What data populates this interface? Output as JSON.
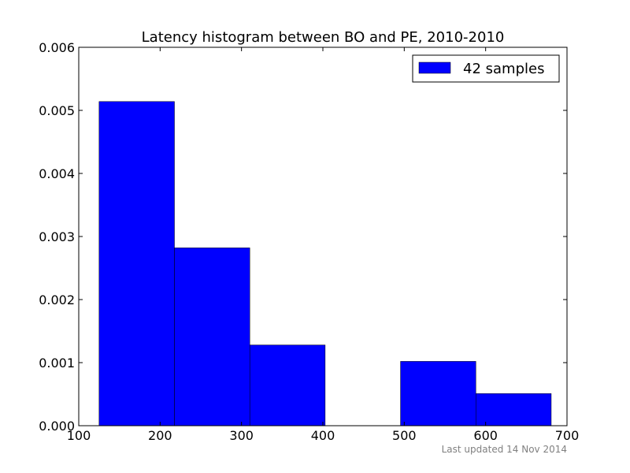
{
  "chart_data": {
    "type": "bar",
    "title": "Latency histogram between BO and PE, 2010-2010",
    "xlabel": "",
    "ylabel": "",
    "xlim": [
      100,
      700
    ],
    "ylim": [
      0,
      0.006
    ],
    "x_ticks": [
      100,
      200,
      300,
      400,
      500,
      600,
      700
    ],
    "y_ticks": [
      0.0,
      0.001,
      0.002,
      0.003,
      0.004,
      0.005,
      0.006
    ],
    "x_tick_labels": [
      "100",
      "200",
      "300",
      "400",
      "500",
      "600",
      "700"
    ],
    "y_tick_labels": [
      "0.000",
      "0.001",
      "0.002",
      "0.003",
      "0.004",
      "0.005",
      "0.006"
    ],
    "grid": false,
    "legend": {
      "position": "top-right",
      "entries": [
        "42 samples"
      ]
    },
    "bar_color": "#0000ff",
    "bins": [
      {
        "x0": 125.0,
        "x1": 217.6,
        "value": 0.00514
      },
      {
        "x0": 217.6,
        "x1": 310.2,
        "value": 0.00282
      },
      {
        "x0": 310.2,
        "x1": 402.8,
        "value": 0.00128
      },
      {
        "x0": 402.8,
        "x1": 495.4,
        "value": 0.0
      },
      {
        "x0": 495.4,
        "x1": 588.0,
        "value": 0.00102
      },
      {
        "x0": 588.0,
        "x1": 680.6,
        "value": 0.00051
      }
    ]
  },
  "footer": {
    "last_updated": "Last updated 14 Nov 2014"
  }
}
